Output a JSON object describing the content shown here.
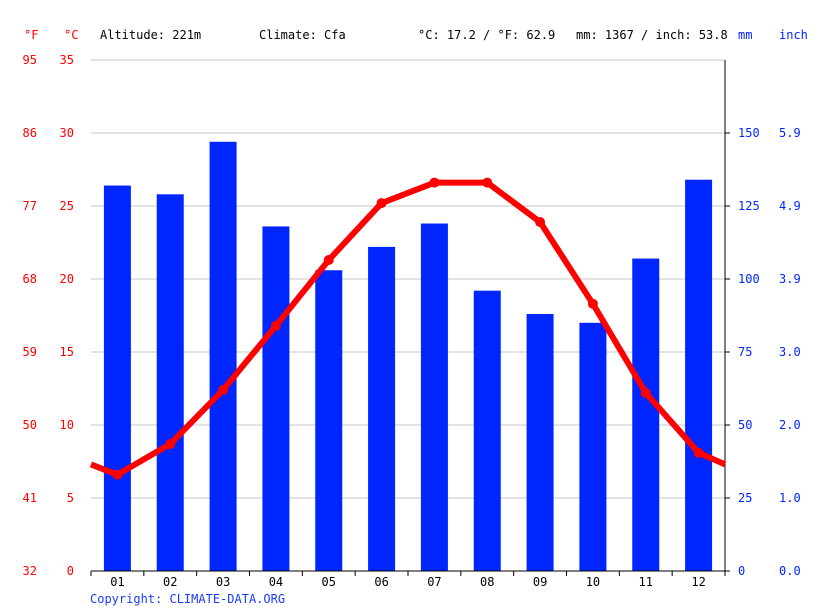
{
  "header": {
    "unit_f": "°F",
    "unit_c": "°C",
    "altitude": "Altitude: 221m",
    "climate": "Climate: Cfa",
    "temp_summary": "°C: 17.2 / °F: 62.9",
    "precip_summary": "mm: 1367 / inch: 53.8",
    "unit_mm": "mm",
    "unit_inch": "inch"
  },
  "copyright": "Copyright: CLIMATE-DATA.ORG",
  "colors": {
    "temperature": "#ff0000",
    "precipitation": "#0026ff",
    "grid": "#c8c8c8",
    "axis": "#000000"
  },
  "chart_data": {
    "type": "bar+line",
    "categories": [
      "01",
      "02",
      "03",
      "04",
      "05",
      "06",
      "07",
      "08",
      "09",
      "10",
      "11",
      "12"
    ],
    "precipitation_mm": [
      132,
      129,
      147,
      118,
      103,
      111,
      119,
      96,
      88,
      85,
      107,
      134
    ],
    "temperature_c": [
      6.6,
      8.7,
      12.4,
      16.8,
      21.3,
      25.2,
      26.6,
      26.6,
      23.9,
      18.3,
      12.2,
      8.1
    ],
    "temp_line_left_edge_c": 7.3,
    "temp_line_right_edge_c": 7.3,
    "axes": {
      "fahrenheit_ticks": [
        "95",
        "86",
        "77",
        "68",
        "59",
        "50",
        "41",
        "32"
      ],
      "celsius_ticks": [
        "35",
        "30",
        "25",
        "20",
        "15",
        "10",
        "5",
        "0"
      ],
      "celsius_range": [
        0,
        35
      ],
      "mm_ticks": [
        "150",
        "125",
        "100",
        "75",
        "50",
        "25",
        "0"
      ],
      "mm_range": [
        0,
        175
      ],
      "inch_ticks": [
        "5.9",
        "4.9",
        "3.9",
        "3.0",
        "2.0",
        "1.0",
        "0.0"
      ]
    },
    "grid": true
  }
}
